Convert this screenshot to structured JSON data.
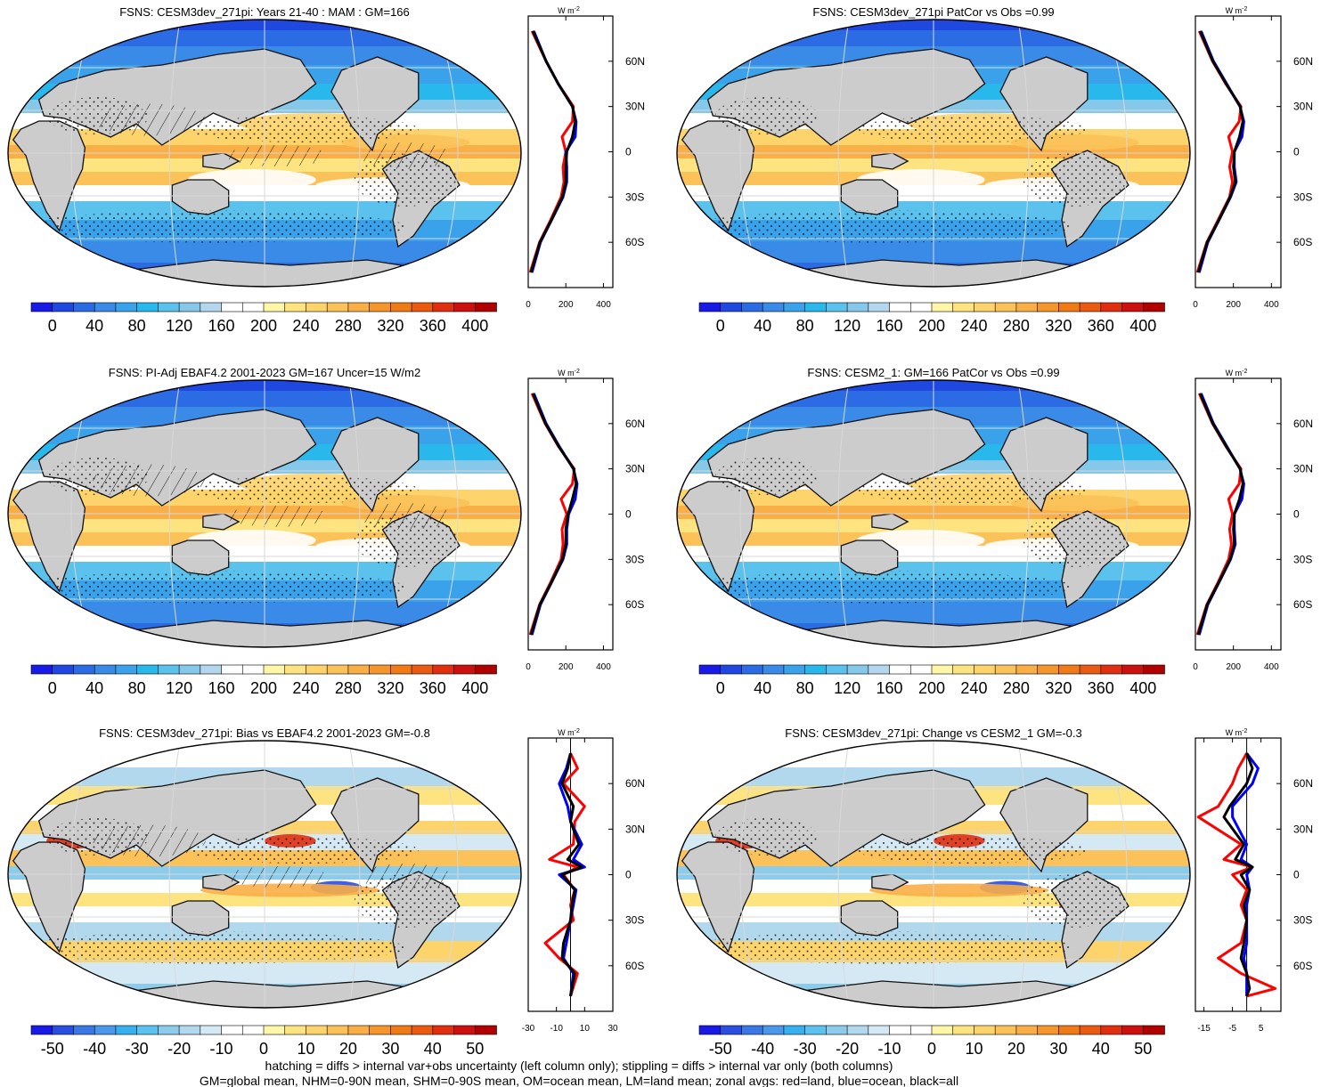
{
  "panels": [
    {
      "title": "FSNS: CESM3dev_271pi: Years 21-40 : MAM : GM=166",
      "kind": "abs",
      "hatch": true,
      "stipple": true,
      "colorbar_labels": [
        "0",
        "40",
        "80",
        "120",
        "160",
        "200",
        "240",
        "280",
        "320",
        "360",
        "400"
      ],
      "profile_ticks": [
        "0",
        "200",
        "400"
      ]
    },
    {
      "title": "FSNS: CESM3dev_271pi PatCor vs Obs =0.99",
      "kind": "abs",
      "hatch": false,
      "stipple": true,
      "colorbar_labels": [
        "0",
        "40",
        "80",
        "120",
        "160",
        "200",
        "240",
        "280",
        "320",
        "360",
        "400"
      ],
      "profile_ticks": [
        "0",
        "200",
        "400"
      ]
    },
    {
      "title": "FSNS: PI-Adj EBAF4.2 2001-2023 GM=167 Uncer=15 W/m2",
      "kind": "abs",
      "hatch": true,
      "stipple": true,
      "colorbar_labels": [
        "0",
        "40",
        "80",
        "120",
        "160",
        "200",
        "240",
        "280",
        "320",
        "360",
        "400"
      ],
      "profile_ticks": [
        "0",
        "200",
        "400"
      ]
    },
    {
      "title": "FSNS: CESM2_1: GM=166 PatCor vs Obs =0.99",
      "kind": "abs",
      "hatch": false,
      "stipple": true,
      "colorbar_labels": [
        "0",
        "40",
        "80",
        "120",
        "160",
        "200",
        "240",
        "280",
        "320",
        "360",
        "400"
      ],
      "profile_ticks": [
        "0",
        "200",
        "400"
      ]
    },
    {
      "title": "FSNS: CESM3dev_271pi: Bias vs EBAF4.2 2001-2023 GM=-0.8",
      "kind": "diff",
      "hatch": true,
      "stipple": true,
      "colorbar_labels": [
        "-50",
        "-40",
        "-30",
        "-20",
        "-10",
        "0",
        "10",
        "20",
        "30",
        "40",
        "50"
      ],
      "profile_ticks": [
        "-30",
        "-10",
        "10",
        "30"
      ]
    },
    {
      "title": "FSNS: CESM3dev_271pi: Change vs CESM2_1 GM=-0.3",
      "kind": "diff",
      "hatch": false,
      "stipple": true,
      "colorbar_labels": [
        "-50",
        "-40",
        "-30",
        "-20",
        "-10",
        "0",
        "10",
        "20",
        "30",
        "40",
        "50"
      ],
      "profile_ticks": [
        "-15",
        "-5",
        "5"
      ]
    }
  ],
  "profile_unit": "W m",
  "profile_unit_sup": "-2",
  "lat_labels": [
    "60N",
    "30N",
    "0",
    "30S",
    "60S"
  ],
  "palette": {
    "abs": [
      "#1a1ae6",
      "#1f48e0",
      "#2b6ce4",
      "#3a8ae8",
      "#3aa2ea",
      "#29b8ec",
      "#5bc2ee",
      "#86c8ea",
      "#b5d7ee",
      "#ffffff",
      "#ffffff",
      "#fff6a8",
      "#fee480",
      "#fdd36b",
      "#fbc25a",
      "#f9ae46",
      "#f4962c",
      "#ef7a16",
      "#ea5a10",
      "#e02f10",
      "#cc0f0f",
      "#b00000"
    ],
    "diff": [
      "#1a1ae6",
      "#2a4fe0",
      "#3b78e6",
      "#4b98ea",
      "#36b0ee",
      "#5cc2ef",
      "#8ccbe9",
      "#b2d8ee",
      "#d5e9f4",
      "#ffffff",
      "#ffffff",
      "#fff6a8",
      "#fee480",
      "#fdd36b",
      "#fbc25a",
      "#f9ae46",
      "#f4962c",
      "#ef7a16",
      "#ea5a10",
      "#e02f10",
      "#cc0f0f",
      "#b00000"
    ],
    "land": "#cccccc",
    "land_line": "#111111",
    "grid": "#d8d8d8",
    "profile_land": "#ff0000",
    "profile_ocean": "#0000ff",
    "profile_all": "#000000"
  },
  "footer": [
    "hatching = diffs > internal var+obs uncertainty (left column only); stippling = diffs > internal var only (both columns)",
    "GM=global mean, NHM=0-90N mean, SHM=0-90S mean, OM=ocean mean, LM=land mean; zonal avgs: red=land, blue=ocean, black=all"
  ],
  "chart_data": [
    {
      "type": "line",
      "title": "FSNS: CESM3dev_271pi: Years 21-40 : MAM : GM=166",
      "ylabel": "W m-2",
      "xlim": [
        0,
        450
      ],
      "x": [
        "80N",
        "60N",
        "45N",
        "30N",
        "20N",
        "10N",
        "0",
        "10S",
        "20S",
        "30S",
        "45S",
        "60S",
        "80S"
      ],
      "series": [
        {
          "name": "red=land",
          "values": [
            20,
            95,
            160,
            240,
            235,
            180,
            200,
            185,
            190,
            175,
            120,
            60,
            10
          ]
        },
        {
          "name": "blue=ocean",
          "values": [
            30,
            95,
            160,
            235,
            255,
            250,
            200,
            205,
            205,
            185,
            125,
            65,
            20
          ]
        },
        {
          "name": "black=all",
          "values": [
            25,
            95,
            160,
            236,
            250,
            235,
            205,
            200,
            200,
            182,
            124,
            62,
            15
          ]
        }
      ]
    },
    {
      "type": "line",
      "title": "FSNS: CESM3dev_271pi PatCor vs Obs =0.99",
      "ylabel": "W m-2",
      "xlim": [
        0,
        450
      ],
      "x": [
        "80N",
        "60N",
        "45N",
        "30N",
        "20N",
        "10N",
        "0",
        "10S",
        "20S",
        "30S",
        "45S",
        "60S",
        "80S"
      ],
      "series": [
        {
          "name": "red=land",
          "values": [
            20,
            90,
            160,
            240,
            230,
            175,
            195,
            180,
            195,
            180,
            120,
            60,
            10
          ]
        },
        {
          "name": "blue=ocean",
          "values": [
            30,
            95,
            165,
            235,
            255,
            245,
            205,
            205,
            215,
            185,
            125,
            65,
            20
          ]
        },
        {
          "name": "black=all",
          "values": [
            25,
            92,
            162,
            236,
            250,
            232,
            205,
            200,
            210,
            183,
            124,
            62,
            15
          ]
        }
      ]
    },
    {
      "type": "line",
      "title": "FSNS: PI-Adj EBAF4.2 2001-2023 GM=167 Uncer=15 W/m2",
      "ylabel": "W m-2",
      "xlim": [
        0,
        450
      ],
      "x": [
        "80N",
        "60N",
        "45N",
        "30N",
        "20N",
        "10N",
        "0",
        "10S",
        "20S",
        "30S",
        "45S",
        "60S",
        "80S"
      ],
      "series": [
        {
          "name": "red=land",
          "values": [
            20,
            90,
            160,
            245,
            235,
            175,
            205,
            180,
            185,
            175,
            120,
            60,
            10
          ]
        },
        {
          "name": "blue=ocean",
          "values": [
            30,
            95,
            165,
            240,
            260,
            250,
            215,
            205,
            205,
            185,
            125,
            65,
            20
          ]
        },
        {
          "name": "black=all",
          "values": [
            25,
            92,
            162,
            242,
            255,
            235,
            212,
            200,
            200,
            182,
            124,
            62,
            15
          ]
        }
      ]
    },
    {
      "type": "line",
      "title": "FSNS: CESM2_1: GM=166 PatCor vs Obs =0.99",
      "ylabel": "W m-2",
      "xlim": [
        0,
        450
      ],
      "x": [
        "80N",
        "60N",
        "45N",
        "30N",
        "20N",
        "10N",
        "0",
        "10S",
        "20S",
        "30S",
        "45S",
        "60S",
        "80S"
      ],
      "series": [
        {
          "name": "red=land",
          "values": [
            20,
            90,
            160,
            240,
            230,
            175,
            195,
            180,
            190,
            175,
            120,
            60,
            10
          ]
        },
        {
          "name": "blue=ocean",
          "values": [
            30,
            95,
            165,
            235,
            255,
            245,
            205,
            205,
            210,
            185,
            125,
            65,
            20
          ]
        },
        {
          "name": "black=all",
          "values": [
            25,
            92,
            162,
            236,
            250,
            232,
            205,
            200,
            205,
            183,
            124,
            62,
            15
          ]
        }
      ]
    },
    {
      "type": "line",
      "title": "FSNS: CESM3dev_271pi: Bias vs EBAF4.2 2001-2023 GM=-0.8",
      "ylabel": "W m-2",
      "xlim": [
        -30,
        30
      ],
      "x": [
        "80N",
        "70N",
        "60N",
        "45N",
        "35N",
        "20N",
        "10N",
        "5N",
        "0",
        "10S",
        "20S",
        "30S",
        "45S",
        "55S",
        "65S",
        "80S"
      ],
      "series": [
        {
          "name": "red=land",
          "values": [
            0,
            5,
            -5,
            10,
            3,
            2,
            -15,
            5,
            -5,
            3,
            0,
            2,
            -18,
            -8,
            5,
            0
          ]
        },
        {
          "name": "blue=ocean",
          "values": [
            0,
            -3,
            -8,
            -2,
            0,
            8,
            2,
            10,
            -8,
            4,
            2,
            0,
            -3,
            -5,
            2,
            0
          ]
        },
        {
          "name": "black=all",
          "values": [
            0,
            -2,
            -6,
            2,
            0,
            6,
            -2,
            8,
            -6,
            3,
            1,
            0,
            -5,
            -6,
            3,
            0
          ]
        }
      ]
    },
    {
      "type": "line",
      "title": "FSNS: CESM3dev_271pi: Change vs CESM2_1 GM=-0.3",
      "ylabel": "W m-2",
      "xlim": [
        -18,
        12
      ],
      "x": [
        "80N",
        "70N",
        "60N",
        "45N",
        "38N",
        "20N",
        "10N",
        "5N",
        "0",
        "10S",
        "20S",
        "30S",
        "45S",
        "55S",
        "65S",
        "75S",
        "80S"
      ],
      "series": [
        {
          "name": "red=land",
          "values": [
            0,
            -3,
            -5,
            -10,
            -17,
            -2,
            -8,
            2,
            -5,
            0,
            -2,
            0,
            -2,
            -10,
            -2,
            10,
            0
          ]
        },
        {
          "name": "blue=ocean",
          "values": [
            0,
            4,
            2,
            -5,
            -5,
            0,
            -2,
            2,
            0,
            1,
            0,
            0,
            0,
            -1,
            0,
            0,
            0
          ]
        },
        {
          "name": "black=all",
          "values": [
            0,
            2,
            0,
            -6,
            -8,
            -1,
            -4,
            2,
            -2,
            1,
            -1,
            0,
            -1,
            -2,
            0,
            1,
            0
          ]
        }
      ]
    }
  ]
}
